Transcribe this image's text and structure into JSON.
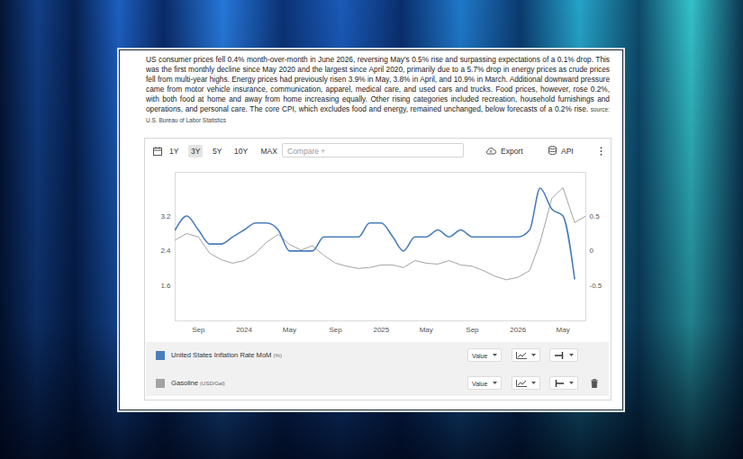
{
  "chart_data": {
    "type": "line",
    "subtitle": "US consumer prices fell 0.4% month-over-month in June 2026, reversing May's 0.5% rise and surpassing expectations of a 0.1% drop. This was the first monthly decline since May 2020 and the largest since April 2020, primarily due to a 5.7% drop in energy prices as crude prices fell from multi-year highs. Energy prices had previously risen 3.9% in May, 3.8% in April, and 10.9% in March. Additional downward pressure came from motor vehicle insurance, communication, apparel, medical care, and used cars and trucks. Food prices, however, rose 0.2%, with both food at home and away from home increasing equally. Other rising categories included recreation, household furnishings and operations, and personal care. The core CPI, which excludes food and energy, remained unchanged, below forecasts of a 0.2% rise.",
    "source": "source: U.S. Bureau of Labor Statistics",
    "range_buttons": [
      "1Y",
      "3Y",
      "5Y",
      "10Y",
      "MAX"
    ],
    "selected_range": "3Y",
    "compare": "Compare +",
    "actions": [
      "Export",
      "API"
    ],
    "legend_control": "Value",
    "xlim": [
      "2023-07",
      "2026-07"
    ],
    "xticks": [
      {
        "value": "2023-09",
        "label": "Sep"
      },
      {
        "value": "2024-01",
        "label": "2024"
      },
      {
        "value": "2024-05",
        "label": "May"
      },
      {
        "value": "2024-09",
        "label": "Sep"
      },
      {
        "value": "2025-01",
        "label": "2025"
      },
      {
        "value": "2025-05",
        "label": "May"
      },
      {
        "value": "2025-09",
        "label": "Sep"
      },
      {
        "value": "2026-01",
        "label": "2026"
      },
      {
        "value": "2026-05",
        "label": "May"
      }
    ],
    "ylim": [
      0.8,
      4.2
    ],
    "yticks": [
      1.6,
      2.4,
      3.2
    ],
    "y2lim": [
      -1.0,
      1.125
    ],
    "y2ticks": [
      -0.5,
      0,
      0.5
    ],
    "grid": false,
    "legend": "bottom",
    "series": [
      {
        "name": "United States Inflation Rate MoM",
        "unit": "(%)",
        "color": "#4a7ebb",
        "axis": "y2",
        "x": [
          "2023-07",
          "2023-08",
          "2023-09",
          "2023-10",
          "2023-11",
          "2023-12",
          "2024-01",
          "2024-02",
          "2024-03",
          "2024-04",
          "2024-05",
          "2024-06",
          "2024-07",
          "2024-08",
          "2024-09",
          "2024-10",
          "2024-11",
          "2024-12",
          "2025-01",
          "2025-02",
          "2025-03",
          "2025-04",
          "2025-05",
          "2025-06",
          "2025-07",
          "2025-08",
          "2025-09",
          "2025-10",
          "2025-11",
          "2025-12",
          "2026-01",
          "2026-02",
          "2026-03",
          "2026-04",
          "2026-05",
          "2026-06"
        ],
        "values": [
          0.3,
          0.5,
          0.3,
          0.1,
          0.1,
          0.2,
          0.3,
          0.4,
          0.4,
          0.3,
          0.0,
          0.0,
          0.0,
          0.2,
          0.2,
          0.2,
          0.2,
          0.4,
          0.4,
          0.2,
          0.0,
          0.2,
          0.2,
          0.3,
          0.2,
          0.3,
          0.2,
          0.2,
          0.2,
          0.2,
          0.2,
          0.3,
          0.9,
          0.6,
          0.5,
          -0.4
        ]
      },
      {
        "name": "Gasoline",
        "unit": "(USD/Gal)",
        "color": "#a3a3a3",
        "axis": "y",
        "x": [
          "2023-07",
          "2023-08",
          "2023-09",
          "2023-10",
          "2023-11",
          "2023-12",
          "2024-01",
          "2024-02",
          "2024-03",
          "2024-04",
          "2024-05",
          "2024-06",
          "2024-07",
          "2024-08",
          "2024-09",
          "2024-10",
          "2024-11",
          "2024-12",
          "2025-01",
          "2025-02",
          "2025-03",
          "2025-04",
          "2025-05",
          "2025-06",
          "2025-07",
          "2025-08",
          "2025-09",
          "2025-10",
          "2025-11",
          "2025-12",
          "2026-01",
          "2026-02",
          "2026-03",
          "2026-04",
          "2026-05",
          "2026-06",
          "2026-07"
        ],
        "values": [
          2.65,
          2.8,
          2.72,
          2.35,
          2.2,
          2.12,
          2.18,
          2.35,
          2.6,
          2.78,
          2.55,
          2.42,
          2.52,
          2.3,
          2.12,
          2.05,
          2.0,
          2.02,
          2.08,
          2.08,
          2.02,
          2.18,
          2.12,
          2.1,
          2.18,
          2.08,
          2.05,
          1.95,
          1.82,
          1.74,
          1.8,
          1.95,
          2.6,
          3.6,
          3.85,
          3.05,
          3.2
        ]
      }
    ]
  }
}
